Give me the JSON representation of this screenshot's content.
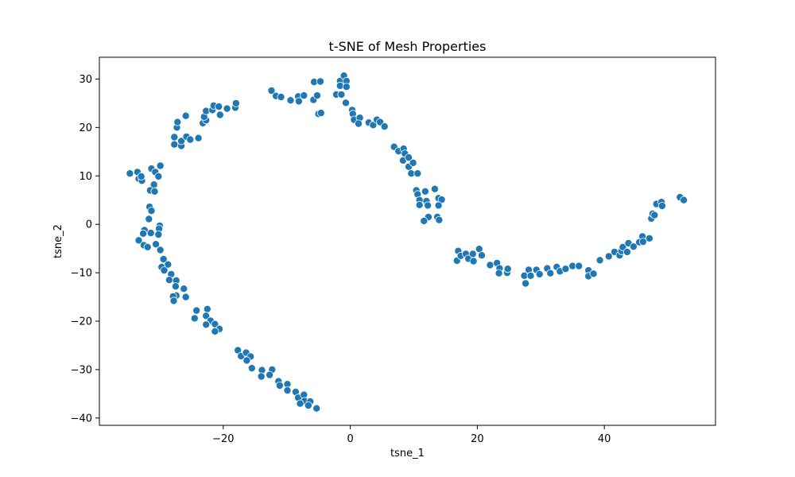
{
  "chart_data": {
    "type": "scatter",
    "title": "t-SNE of Mesh Properties",
    "xlabel": "tsne_1",
    "ylabel": "tsne_2",
    "xlim": [
      -39.5,
      57.5
    ],
    "ylim": [
      -41.5,
      34.5
    ],
    "xticks": [
      -20,
      0,
      20,
      40
    ],
    "yticks": [
      -40,
      -30,
      -20,
      -10,
      0,
      10,
      20,
      30
    ],
    "point_color": "#1f77b4",
    "point_edge_color": "#ffffff",
    "grid": false,
    "series": [
      {
        "points": [
          [
            -34.7,
            10.5
          ],
          [
            -33.5,
            10.8
          ],
          [
            -33.3,
            9.4
          ],
          [
            -32.8,
            9.0
          ],
          [
            -32.9,
            9.9
          ],
          [
            -31.3,
            11.5
          ],
          [
            -30.7,
            10.8
          ],
          [
            -29.9,
            12.1
          ],
          [
            -30.2,
            9.9
          ],
          [
            -30.9,
            8.2
          ],
          [
            -31.5,
            7.0
          ],
          [
            -30.8,
            6.8
          ],
          [
            -31.6,
            3.6
          ],
          [
            -31.3,
            2.8
          ],
          [
            -31.7,
            1.1
          ],
          [
            -30.0,
            -0.3
          ],
          [
            -30.1,
            -0.9
          ],
          [
            -30.2,
            -2.1
          ],
          [
            -31.4,
            -1.8
          ],
          [
            -32.4,
            -1.2
          ],
          [
            -32.6,
            -1.9
          ],
          [
            -33.3,
            -3.3
          ],
          [
            -32.5,
            -4.3
          ],
          [
            -31.9,
            -4.7
          ],
          [
            -30.6,
            -4.1
          ],
          [
            -29.9,
            -5.3
          ],
          [
            -29.4,
            -7.2
          ],
          [
            -28.7,
            -8.3
          ],
          [
            -29.7,
            -8.8
          ],
          [
            -29.3,
            -9.5
          ],
          [
            -28.2,
            -10.3
          ],
          [
            -28.5,
            -11.5
          ],
          [
            -27.4,
            -11.6
          ],
          [
            -27.5,
            -12.8
          ],
          [
            -26.2,
            -13.3
          ],
          [
            -27.4,
            -14.7
          ],
          [
            -27.9,
            -14.9
          ],
          [
            -27.8,
            -15.8
          ],
          [
            -25.9,
            -15.0
          ],
          [
            -24.2,
            -17.8
          ],
          [
            -22.5,
            -17.5
          ],
          [
            -22.7,
            -18.9
          ],
          [
            -24.5,
            -19.4
          ],
          [
            -22.0,
            -19.9
          ],
          [
            -22.7,
            -20.7
          ],
          [
            -21.3,
            -20.6
          ],
          [
            -20.6,
            -21.6
          ],
          [
            -21.3,
            -22.1
          ],
          [
            -17.7,
            -26.0
          ],
          [
            -17.2,
            -27.2
          ],
          [
            -16.4,
            -26.5
          ],
          [
            -15.7,
            -27.3
          ],
          [
            -16.3,
            -28.1
          ],
          [
            -15.5,
            -29.7
          ],
          [
            -13.9,
            -30.1
          ],
          [
            -12.3,
            -30.0
          ],
          [
            -12.7,
            -31.1
          ],
          [
            -14.0,
            -31.4
          ],
          [
            -11.3,
            -32.4
          ],
          [
            -11.1,
            -33.3
          ],
          [
            -9.9,
            -33.0
          ],
          [
            -9.9,
            -34.3
          ],
          [
            -8.6,
            -34.6
          ],
          [
            -8.2,
            -35.8
          ],
          [
            -7.3,
            -35.2
          ],
          [
            -7.2,
            -36.5
          ],
          [
            -6.3,
            -36.6
          ],
          [
            -7.9,
            -37.0
          ],
          [
            -6.6,
            -37.4
          ],
          [
            -5.3,
            -38.0
          ],
          [
            -27.7,
            16.5
          ],
          [
            -27.7,
            18.0
          ],
          [
            -26.6,
            16.2
          ],
          [
            -26.6,
            17.2
          ],
          [
            -25.8,
            18.1
          ],
          [
            -25.2,
            17.5
          ],
          [
            -23.9,
            17.8
          ],
          [
            -27.3,
            20.0
          ],
          [
            -27.2,
            21.1
          ],
          [
            -25.9,
            22.4
          ],
          [
            -23.2,
            20.9
          ],
          [
            -22.7,
            21.5
          ],
          [
            -23.0,
            22.2
          ],
          [
            -22.7,
            23.4
          ],
          [
            -21.7,
            23.6
          ],
          [
            -21.5,
            24.5
          ],
          [
            -20.7,
            24.3
          ],
          [
            -20.5,
            22.6
          ],
          [
            -19.4,
            23.9
          ],
          [
            -18.1,
            24.1
          ],
          [
            -18.0,
            25.0
          ],
          [
            -12.4,
            27.6
          ],
          [
            -11.7,
            26.5
          ],
          [
            -10.9,
            26.3
          ],
          [
            -9.4,
            25.6
          ],
          [
            -8.2,
            26.4
          ],
          [
            -8.1,
            25.4
          ],
          [
            -7.3,
            26.6
          ],
          [
            -5.8,
            25.7
          ],
          [
            -5.2,
            26.6
          ],
          [
            -5.7,
            29.4
          ],
          [
            -4.7,
            29.5
          ],
          [
            -5.0,
            22.8
          ],
          [
            -4.6,
            23.0
          ],
          [
            -2.2,
            26.8
          ],
          [
            -1.6,
            29.6
          ],
          [
            -1.6,
            28.6
          ],
          [
            -1.0,
            30.7
          ],
          [
            -0.6,
            29.6
          ],
          [
            -0.6,
            28.4
          ],
          [
            -1.4,
            26.8
          ],
          [
            -0.7,
            25.1
          ],
          [
            0.3,
            23.6
          ],
          [
            0.4,
            22.8
          ],
          [
            0.6,
            21.6
          ],
          [
            1.5,
            22.0
          ],
          [
            1.3,
            20.8
          ],
          [
            2.9,
            21.0
          ],
          [
            3.6,
            20.5
          ],
          [
            4.2,
            21.6
          ],
          [
            4.7,
            21.1
          ],
          [
            5.4,
            20.2
          ],
          [
            6.9,
            16.0
          ],
          [
            7.6,
            15.1
          ],
          [
            8.4,
            15.6
          ],
          [
            8.6,
            14.6
          ],
          [
            8.3,
            13.2
          ],
          [
            9.2,
            13.8
          ],
          [
            9.2,
            11.9
          ],
          [
            9.9,
            12.7
          ],
          [
            9.6,
            10.5
          ],
          [
            10.6,
            10.5
          ],
          [
            10.4,
            7.0
          ],
          [
            10.6,
            6.2
          ],
          [
            10.9,
            5.0
          ],
          [
            10.9,
            4.0
          ],
          [
            11.8,
            6.8
          ],
          [
            12.0,
            4.8
          ],
          [
            12.2,
            3.9
          ],
          [
            12.3,
            1.5
          ],
          [
            11.6,
            0.7
          ],
          [
            13.3,
            7.3
          ],
          [
            13.9,
            5.4
          ],
          [
            14.4,
            5.1
          ],
          [
            13.9,
            3.9
          ],
          [
            13.7,
            1.5
          ],
          [
            14.0,
            0.9
          ],
          [
            16.8,
            -7.5
          ],
          [
            17.0,
            -5.5
          ],
          [
            17.4,
            -6.5
          ],
          [
            18.2,
            -6.1
          ],
          [
            18.6,
            -7.1
          ],
          [
            19.3,
            -6.1
          ],
          [
            19.4,
            -7.6
          ],
          [
            20.3,
            -5.1
          ],
          [
            20.7,
            -6.4
          ],
          [
            22.0,
            -8.4
          ],
          [
            23.1,
            -8.0
          ],
          [
            23.5,
            -9.1
          ],
          [
            23.4,
            -10.1
          ],
          [
            24.7,
            -10.0
          ],
          [
            24.8,
            -9.2
          ],
          [
            27.4,
            -10.6
          ],
          [
            27.6,
            -12.2
          ],
          [
            28.1,
            -9.4
          ],
          [
            28.4,
            -10.6
          ],
          [
            29.3,
            -9.4
          ],
          [
            29.8,
            -10.3
          ],
          [
            31.0,
            -9.1
          ],
          [
            31.5,
            -10.1
          ],
          [
            32.5,
            -8.8
          ],
          [
            33.0,
            -9.7
          ],
          [
            33.9,
            -9.2
          ],
          [
            35.0,
            -8.6
          ],
          [
            36.0,
            -8.6
          ],
          [
            37.5,
            -9.5
          ],
          [
            37.5,
            -10.7
          ],
          [
            38.3,
            -10.2
          ],
          [
            39.3,
            -7.4
          ],
          [
            40.7,
            -6.6
          ],
          [
            41.6,
            -5.7
          ],
          [
            42.4,
            -6.4
          ],
          [
            42.7,
            -5.5
          ],
          [
            42.9,
            -4.7
          ],
          [
            43.6,
            -5.7
          ],
          [
            43.8,
            -3.9
          ],
          [
            44.6,
            -4.6
          ],
          [
            45.5,
            -3.7
          ],
          [
            46.0,
            -2.5
          ],
          [
            46.1,
            -3.6
          ],
          [
            47.1,
            -2.9
          ],
          [
            47.4,
            1.2
          ],
          [
            47.6,
            2.2
          ],
          [
            47.9,
            1.9
          ],
          [
            48.2,
            4.2
          ],
          [
            49.0,
            4.6
          ],
          [
            49.1,
            3.8
          ],
          [
            51.9,
            5.6
          ],
          [
            52.5,
            5.0
          ]
        ]
      }
    ]
  }
}
